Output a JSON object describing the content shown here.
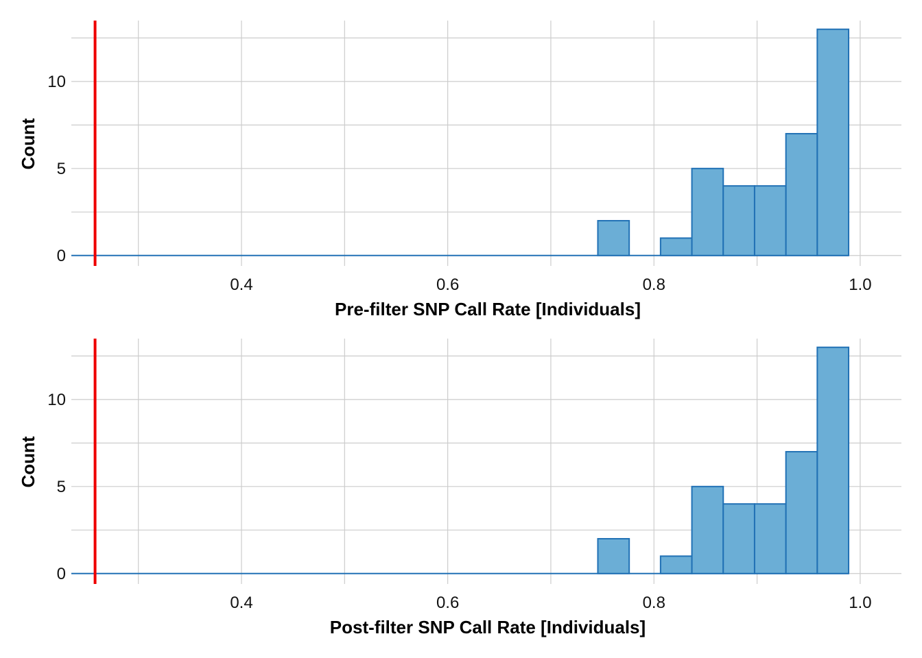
{
  "chart_data": [
    {
      "type": "bar",
      "title": "",
      "xlabel": "Pre-filter SNP Call Rate [Individuals]",
      "ylabel": "Count",
      "xlim": [
        0.235,
        1.04
      ],
      "ylim": [
        -0.6,
        13.5
      ],
      "x_ticks": [
        0.4,
        0.6,
        0.8,
        1.0
      ],
      "x_tick_labels": [
        "0.4",
        "0.6",
        "0.8",
        "1.0"
      ],
      "y_ticks": [
        0,
        5,
        10
      ],
      "y_tick_labels": [
        "0",
        "5",
        "10"
      ],
      "grid": true,
      "bin_width": 0.0304,
      "bins": [
        {
          "start": 0.7456,
          "end": 0.776,
          "count": 2
        },
        {
          "start": 0.8064,
          "end": 0.8368,
          "count": 1
        },
        {
          "start": 0.8368,
          "end": 0.8672,
          "count": 5
        },
        {
          "start": 0.8672,
          "end": 0.8976,
          "count": 4
        },
        {
          "start": 0.8976,
          "end": 0.928,
          "count": 4
        },
        {
          "start": 0.928,
          "end": 0.9584,
          "count": 7
        },
        {
          "start": 0.9584,
          "end": 0.9888,
          "count": 13
        }
      ],
      "baseline_range": [
        0.235,
        0.9888
      ],
      "threshold": 0.258,
      "colors": {
        "fill": "#6baed6",
        "stroke": "#2171b5",
        "threshold": "#ee0000",
        "grid": "#cccccc"
      }
    },
    {
      "type": "bar",
      "title": "",
      "xlabel": "Post-filter SNP Call Rate [Individuals]",
      "ylabel": "Count",
      "xlim": [
        0.235,
        1.04
      ],
      "ylim": [
        -0.6,
        13.5
      ],
      "x_ticks": [
        0.4,
        0.6,
        0.8,
        1.0
      ],
      "x_tick_labels": [
        "0.4",
        "0.6",
        "0.8",
        "1.0"
      ],
      "y_ticks": [
        0,
        5,
        10
      ],
      "y_tick_labels": [
        "0",
        "5",
        "10"
      ],
      "grid": true,
      "bin_width": 0.0304,
      "bins": [
        {
          "start": 0.7456,
          "end": 0.776,
          "count": 2
        },
        {
          "start": 0.8064,
          "end": 0.8368,
          "count": 1
        },
        {
          "start": 0.8368,
          "end": 0.8672,
          "count": 5
        },
        {
          "start": 0.8672,
          "end": 0.8976,
          "count": 4
        },
        {
          "start": 0.8976,
          "end": 0.928,
          "count": 4
        },
        {
          "start": 0.928,
          "end": 0.9584,
          "count": 7
        },
        {
          "start": 0.9584,
          "end": 0.9888,
          "count": 13
        }
      ],
      "baseline_range": [
        0.235,
        0.9888
      ],
      "threshold": 0.258,
      "colors": {
        "fill": "#6baed6",
        "stroke": "#2171b5",
        "threshold": "#ee0000",
        "grid": "#cccccc"
      }
    }
  ]
}
